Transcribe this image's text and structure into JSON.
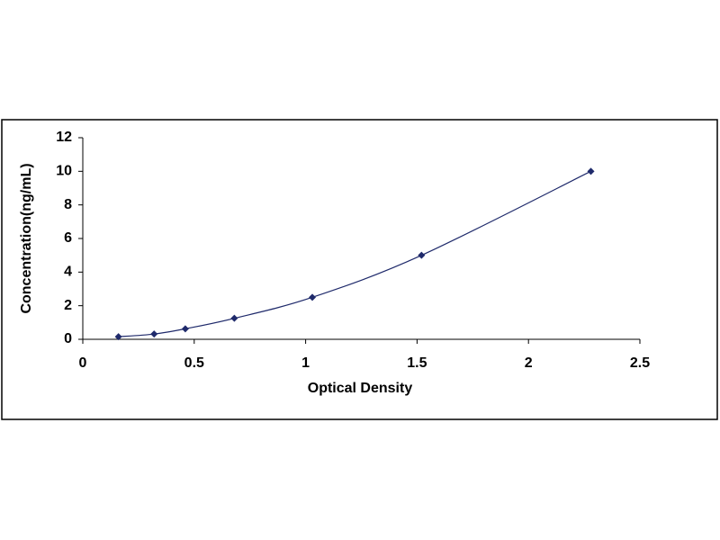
{
  "chart_data": {
    "type": "scatter",
    "line": true,
    "smooth": true,
    "x_label": "Optical Density",
    "y_label": "Concentration(ng/mL)",
    "series": [
      {
        "color": "#1f2a6b",
        "x": [
          0.16,
          0.32,
          0.46,
          0.68,
          1.03,
          1.52,
          2.28
        ],
        "values": [
          0.156,
          0.312,
          0.625,
          1.25,
          2.5,
          5,
          10
        ]
      }
    ],
    "xlim": [
      0,
      2.5
    ],
    "xticks": [
      0,
      0.5,
      1,
      1.5,
      2,
      2.5
    ],
    "ylim": [
      0,
      12
    ],
    "yticks": [
      0,
      2,
      4,
      6,
      8,
      10,
      12
    ],
    "grid": false
  }
}
